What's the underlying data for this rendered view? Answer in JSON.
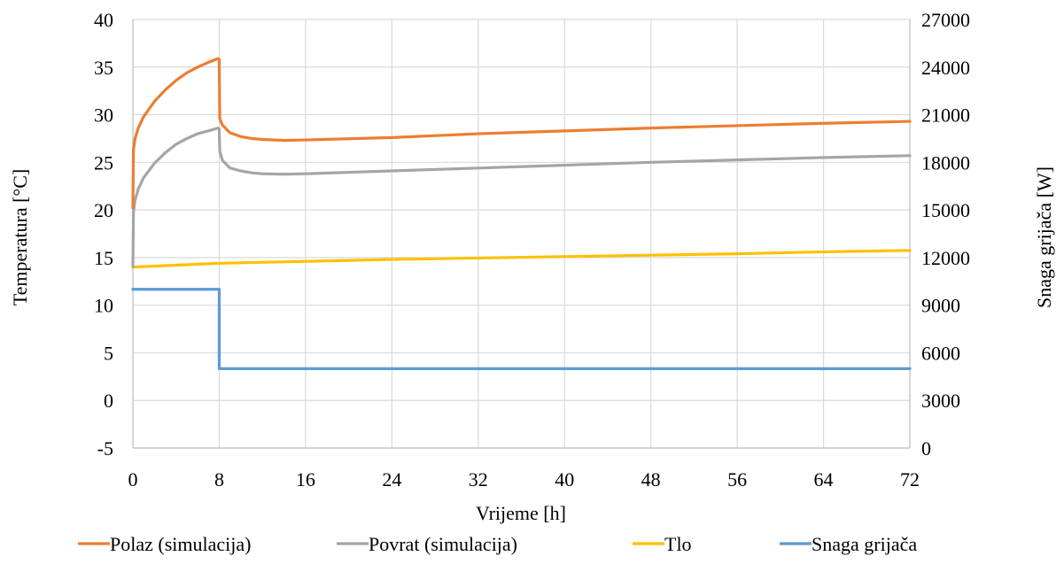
{
  "chart_data": {
    "type": "line",
    "xlabel": "Vrijeme [h]",
    "ylabel": "Temperatura [°C]",
    "y2label": "Snaga grijača [W]",
    "xlim": [
      0,
      72
    ],
    "ylim": [
      -5,
      40
    ],
    "y2lim": [
      0,
      27000
    ],
    "x_ticks": [
      0,
      8,
      16,
      24,
      32,
      40,
      48,
      56,
      64,
      72
    ],
    "y_ticks": [
      -5,
      0,
      5,
      10,
      15,
      20,
      25,
      30,
      35,
      40
    ],
    "y2_ticks": [
      0,
      3000,
      6000,
      9000,
      12000,
      15000,
      18000,
      21000,
      24000,
      27000
    ],
    "grid": true,
    "legend_position": "bottom",
    "series": [
      {
        "name": "Polaz (simulacija)",
        "color": "#ED7D31",
        "axis": "left",
        "x": [
          0,
          0.05,
          0.2,
          0.5,
          1,
          2,
          3,
          4,
          5,
          6,
          7,
          7.9,
          8,
          8.05,
          8.3,
          9,
          10,
          11,
          12,
          14,
          16,
          24,
          32,
          40,
          48,
          56,
          64,
          72
        ],
        "y": [
          20.2,
          26.3,
          27.5,
          28.6,
          29.8,
          31.4,
          32.6,
          33.6,
          34.4,
          35.0,
          35.5,
          35.9,
          35.8,
          29.6,
          28.9,
          28.1,
          27.7,
          27.5,
          27.4,
          27.3,
          27.35,
          27.6,
          28.0,
          28.3,
          28.6,
          28.85,
          29.1,
          29.3
        ]
      },
      {
        "name": "Povrat (simulacija)",
        "color": "#A5A5A5",
        "axis": "left",
        "x": [
          0,
          0.05,
          0.2,
          0.5,
          1,
          2,
          3,
          4,
          5,
          6,
          7,
          7.9,
          8,
          8.05,
          8.3,
          9,
          10,
          11,
          12,
          14,
          16,
          24,
          32,
          40,
          48,
          56,
          64,
          72
        ],
        "y": [
          14.0,
          19.8,
          21.0,
          22.2,
          23.4,
          24.9,
          26.0,
          26.9,
          27.5,
          28.0,
          28.3,
          28.6,
          28.5,
          26.2,
          25.2,
          24.4,
          24.1,
          23.9,
          23.8,
          23.75,
          23.8,
          24.1,
          24.4,
          24.7,
          25.0,
          25.25,
          25.5,
          25.7
        ]
      },
      {
        "name": "Tlo",
        "color": "#FFC000",
        "axis": "left",
        "x": [
          0,
          8,
          16,
          24,
          32,
          40,
          48,
          56,
          64,
          72
        ],
        "y": [
          14.0,
          14.4,
          14.6,
          14.8,
          14.95,
          15.1,
          15.25,
          15.4,
          15.6,
          15.75
        ]
      },
      {
        "name": "Snaga grijača",
        "color": "#5B9BD5",
        "axis": "right",
        "x": [
          0,
          8,
          8,
          72
        ],
        "y": [
          10000,
          10000,
          5000,
          5000
        ]
      }
    ]
  }
}
